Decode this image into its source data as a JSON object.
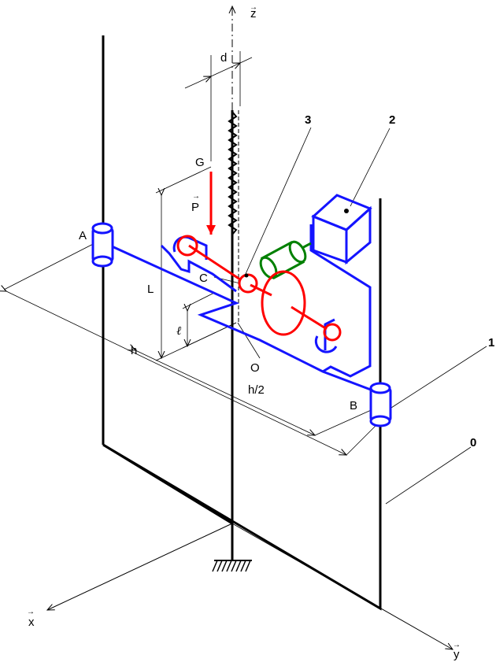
{
  "axes": {
    "z": "z",
    "x": "x",
    "y": "y"
  },
  "points": {
    "A": "A",
    "B": "B",
    "C": "C",
    "G": "G",
    "O": "O"
  },
  "dimensions": {
    "d": "d",
    "L": "L",
    "l": "ℓ",
    "h": "h",
    "h_half": "h/2"
  },
  "force": {
    "P": "P"
  },
  "parts": {
    "p0": "0",
    "p1": "1",
    "p2": "2",
    "p3": "3"
  },
  "colors": {
    "frame": "#000000",
    "mechanism": "#1414ff",
    "force": "#ff0000",
    "motor": "#008000"
  }
}
